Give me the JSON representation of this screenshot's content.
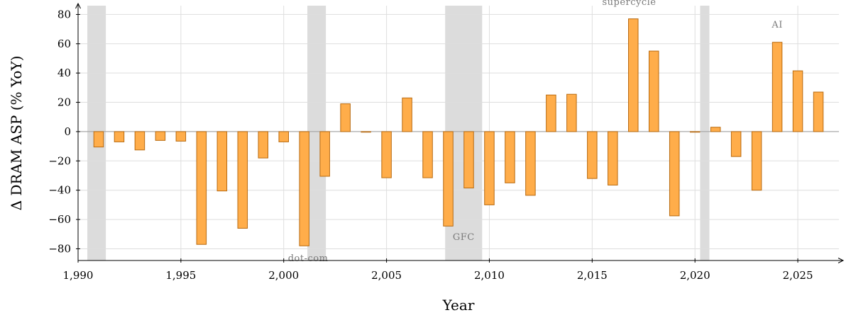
{
  "chart_data": {
    "type": "bar",
    "title": "",
    "xlabel": "Year",
    "ylabel": "Δ DRAM ASP (% YoY)",
    "xlim": [
      1990,
      2027
    ],
    "ylim": [
      -88,
      86
    ],
    "x_ticks": [
      1990,
      1995,
      2000,
      2005,
      2010,
      2015,
      2020,
      2025
    ],
    "x_tick_labels": [
      "1,990",
      "1,995",
      "2,000",
      "2,005",
      "2,010",
      "2,015",
      "2,020",
      "2,025"
    ],
    "y_ticks": [
      -80,
      -60,
      -40,
      -20,
      0,
      20,
      40,
      60,
      80
    ],
    "y_tick_labels": [
      "−80",
      "−60",
      "−40",
      "−20",
      "0",
      "20",
      "40",
      "60",
      "80"
    ],
    "grid": true,
    "bar_color": "#ffad4a",
    "bar_edge_color": "#b86a10",
    "shade_color": "#dcdcdc",
    "series": [
      {
        "x": [
          1991,
          1992,
          1993,
          1994,
          1995,
          1996,
          1997,
          1998,
          1999,
          2000,
          2001,
          2002,
          2003,
          2004,
          2005,
          2006,
          2007,
          2008,
          2009,
          2010,
          2011,
          2012,
          2013,
          2014,
          2015,
          2016,
          2017,
          2018,
          2019,
          2020,
          2021,
          2022,
          2023,
          2024,
          2025,
          2026
        ],
        "values": [
          -10.5,
          -7,
          -12.5,
          -6,
          -6.5,
          -77,
          -40.5,
          -66,
          -18,
          -7,
          -78,
          -30.5,
          19,
          0,
          -31.5,
          23,
          -31.5,
          -64.5,
          -38.5,
          -50,
          -35,
          -43.5,
          25,
          25.5,
          -32,
          -36.5,
          77,
          55,
          -57.5,
          0,
          3,
          -17,
          -40,
          61,
          41.5,
          27
        ]
      }
    ],
    "shaded_periods": [
      {
        "start": 1990.45,
        "end": 1991.35,
        "label": ""
      },
      {
        "start": 2001.15,
        "end": 2002.05,
        "label": "dot-com"
      },
      {
        "start": 2007.85,
        "end": 2009.65,
        "label": "GFC"
      },
      {
        "start": 2020.25,
        "end": 2020.7,
        "label": ""
      }
    ],
    "annotations": [
      {
        "text": "supercycle",
        "x": 2016.8,
        "y": 86.5
      },
      {
        "text": "AI",
        "x": 2024,
        "y": 71
      }
    ]
  }
}
